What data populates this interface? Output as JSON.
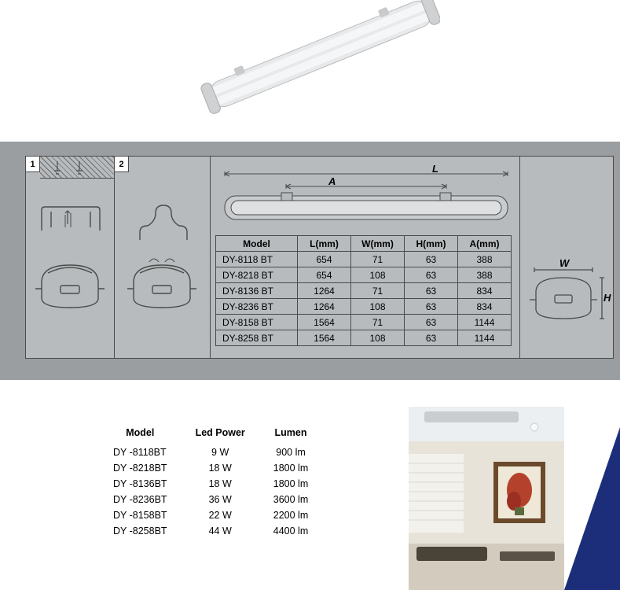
{
  "spec_tabs": {
    "tab1": "1",
    "tab2": "2"
  },
  "top_schematic": {
    "L_label": "L",
    "A_label": "A",
    "W_label": "W",
    "H_label": "H"
  },
  "dim_table": {
    "headers": {
      "model": "Model",
      "L": "L(mm)",
      "W": "W(mm)",
      "H": "H(mm)",
      "A": "A(mm)"
    },
    "rows": [
      {
        "model": "DY-8118 BT",
        "L": "654",
        "W": "71",
        "H": "63",
        "A": "388"
      },
      {
        "model": "DY-8218 BT",
        "L": "654",
        "W": "108",
        "H": "63",
        "A": "388"
      },
      {
        "model": "DY-8136 BT",
        "L": "1264",
        "W": "71",
        "H": "63",
        "A": "834"
      },
      {
        "model": "DY-8236 BT",
        "L": "1264",
        "W": "108",
        "H": "63",
        "A": "834"
      },
      {
        "model": "DY-8158 BT",
        "L": "1564",
        "W": "71",
        "H": "63",
        "A": "1144"
      },
      {
        "model": "DY-8258 BT",
        "L": "1564",
        "W": "108",
        "H": "63",
        "A": "1144"
      }
    ]
  },
  "power_table": {
    "headers": {
      "model": "Model",
      "power": "Led Power",
      "lumen": "Lumen"
    },
    "rows": [
      {
        "model": "DY -8118BT",
        "power": "9  W",
        "lumen": "900  lm"
      },
      {
        "model": "DY -8218BT",
        "power": "18 W",
        "lumen": "1800  lm"
      },
      {
        "model": "DY -8136BT",
        "power": "18 W",
        "lumen": "1800  lm"
      },
      {
        "model": "DY -8236BT",
        "power": "36 W",
        "lumen": "3600  lm"
      },
      {
        "model": "DY -8158BT",
        "power": "22 W",
        "lumen": "2200  lm"
      },
      {
        "model": "DY -8258BT",
        "power": "44 W",
        "lumen": "4400  lm"
      }
    ]
  },
  "colors": {
    "band_bg": "#9a9ea1",
    "frame_bg": "#b7bbbe",
    "line": "#4a4a4a",
    "triangle": "#1c2e7a"
  }
}
